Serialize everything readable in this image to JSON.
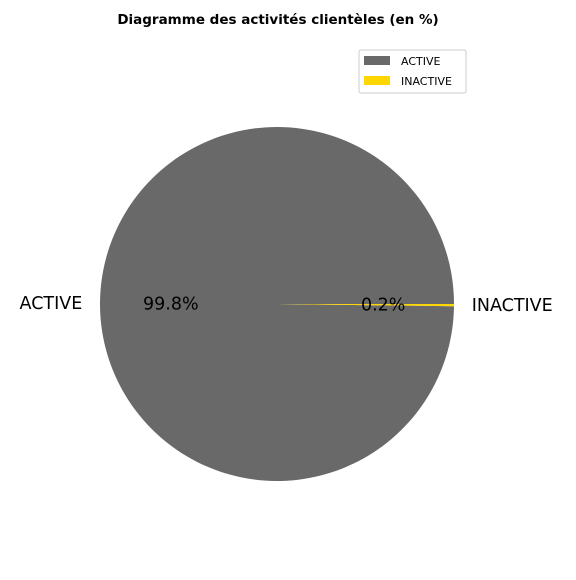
{
  "chart_data": {
    "type": "pie",
    "title": "Diagramme des activités clientèles (en %)",
    "categories": [
      "ACTIVE",
      "INACTIVE"
    ],
    "values": [
      99.8,
      0.2
    ],
    "pct_labels": [
      "99.8%",
      "0.2%"
    ],
    "colors": [
      "#696969",
      "#FFD700"
    ],
    "legend": {
      "placement": "top-right",
      "entries": [
        "ACTIVE",
        "INACTIVE"
      ]
    }
  }
}
